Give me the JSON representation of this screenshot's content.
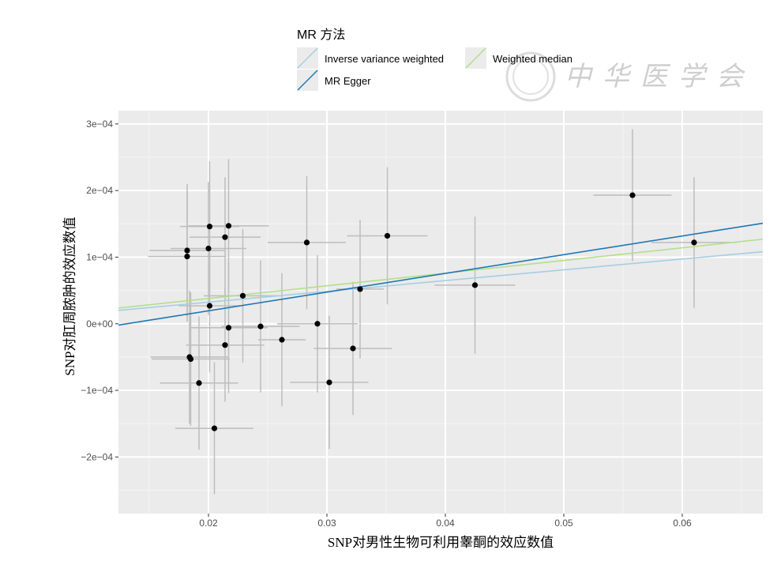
{
  "watermark": "中华医学会",
  "chart_data": {
    "type": "scatter",
    "title": "",
    "xlabel": "SNP对男性生物可利用睾酮的效应数值",
    "ylabel": "SNP对肛周脓肿的效应数值",
    "xlim": [
      0.0124,
      0.0668
    ],
    "ylim": [
      -0.000285,
      0.00032
    ],
    "grid": true,
    "xticks": [
      {
        "v": 0.02,
        "label": "0.02"
      },
      {
        "v": 0.03,
        "label": "0.03"
      },
      {
        "v": 0.04,
        "label": "0.04"
      },
      {
        "v": 0.05,
        "label": "0.05"
      },
      {
        "v": 0.06,
        "label": "0.06"
      }
    ],
    "yticks": [
      {
        "v": 0.0003,
        "label": "3e−04"
      },
      {
        "v": 0.0002,
        "label": "2e−04"
      },
      {
        "v": 0.0001,
        "label": "1e−04"
      },
      {
        "v": 0,
        "label": "0e+00"
      },
      {
        "v": -0.0001,
        "label": "−1e−04"
      },
      {
        "v": -0.0002,
        "label": "−2e−04"
      }
    ],
    "legend": {
      "title": "MR 方法",
      "placement": "top",
      "entries": [
        {
          "name": "Inverse variance weighted",
          "color": "#a6cee3"
        },
        {
          "name": "Weighted median",
          "color": "#b2df8a"
        },
        {
          "name": "MR Egger",
          "color": "#1f78b4"
        }
      ]
    },
    "lines": [
      {
        "name": "Inverse variance weighted",
        "intercept": 0,
        "slope": 0.00162,
        "color": "#a6cee3"
      },
      {
        "name": "Weighted median",
        "intercept": 0,
        "slope": 0.0019,
        "color": "#b2df8a"
      },
      {
        "name": "MR Egger",
        "intercept": -3.68e-05,
        "slope": 0.00281,
        "color": "#1f78b4"
      }
    ],
    "points": [
      {
        "x": 0.0201,
        "y": 0.000146,
        "xse": 0.0025,
        "yse": 9.8e-05
      },
      {
        "x": 0.0217,
        "y": 0.000147,
        "xse": 0.0034,
        "yse": 0.0001
      },
      {
        "x": 0.0214,
        "y": 0.00013,
        "xse": 0.003,
        "yse": 9e-05
      },
      {
        "x": 0.0182,
        "y": 0.00011,
        "xse": 0.0032,
        "yse": 0.0001
      },
      {
        "x": 0.0182,
        "y": 0.000101,
        "xse": 0.0033,
        "yse": 9.8e-05
      },
      {
        "x": 0.02,
        "y": 0.000113,
        "xse": 0.0032,
        "yse": 0.0001
      },
      {
        "x": 0.0283,
        "y": 0.000122,
        "xse": 0.0033,
        "yse": 0.0001
      },
      {
        "x": 0.0351,
        "y": 0.000132,
        "xse": 0.0034,
        "yse": 0.000103
      },
      {
        "x": 0.0229,
        "y": 4.2e-05,
        "xse": 0.0033,
        "yse": 0.0001
      },
      {
        "x": 0.0201,
        "y": 2.7e-05,
        "xse": 0.0026,
        "yse": 0.0001
      },
      {
        "x": 0.0328,
        "y": 5.2e-05,
        "xse": 0.002,
        "yse": 0.000104
      },
      {
        "x": 0.0425,
        "y": 5.8e-05,
        "xse": 0.0034,
        "yse": 0.000103
      },
      {
        "x": 0.0558,
        "y": 0.000193,
        "xse": 0.0033,
        "yse": 9.9e-05
      },
      {
        "x": 0.061,
        "y": 0.000122,
        "xse": 0.0036,
        "yse": 9.8e-05
      },
      {
        "x": 0.0217,
        "y": -6e-06,
        "xse": 0.0033,
        "yse": 9.8e-05
      },
      {
        "x": 0.0244,
        "y": -4e-06,
        "xse": 0.0033,
        "yse": 9.9e-05
      },
      {
        "x": 0.0292,
        "y": 0.0,
        "xse": 0.0034,
        "yse": 0.000103
      },
      {
        "x": 0.0262,
        "y": -2.4e-05,
        "xse": 0.002,
        "yse": 0.0001
      },
      {
        "x": 0.0214,
        "y": -3.2e-05,
        "xse": 0.0033,
        "yse": 8.5e-05
      },
      {
        "x": 0.0322,
        "y": -3.7e-05,
        "xse": 0.0033,
        "yse": 0.0001
      },
      {
        "x": 0.0184,
        "y": -5e-05,
        "xse": 0.0033,
        "yse": 0.0001
      },
      {
        "x": 0.0185,
        "y": -5.3e-05,
        "xse": 0.0033,
        "yse": 0.0001
      },
      {
        "x": 0.0192,
        "y": -8.9e-05,
        "xse": 0.0033,
        "yse": 0.0001
      },
      {
        "x": 0.0302,
        "y": -8.8e-05,
        "xse": 0.0033,
        "yse": 0.0001
      },
      {
        "x": 0.0205,
        "y": -0.000157,
        "xse": 0.0033,
        "yse": 9.9e-05
      }
    ]
  }
}
